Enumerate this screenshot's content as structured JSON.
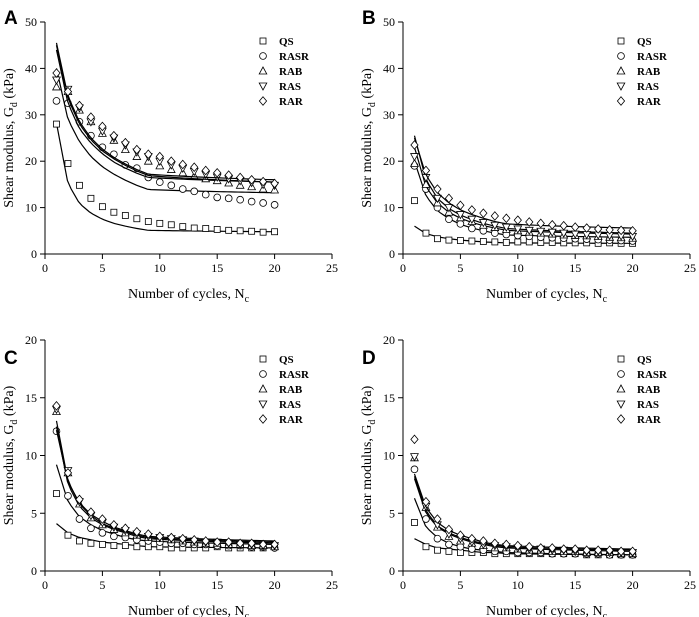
{
  "figure": {
    "description_labels": [
      "A",
      "B",
      "C",
      "D"
    ]
  },
  "chart_data": [
    {
      "panel": "A",
      "type": "scatter",
      "xlabel": "Number of cycles, N",
      "xlabel_sub": "c",
      "ylabel": "Shear modulus, G",
      "ylabel_sub": "d",
      "ylabel_unit": " (kPa)",
      "xlim": [
        0,
        25
      ],
      "ylim": [
        0,
        50
      ],
      "xticks": [
        0,
        5,
        10,
        15,
        20,
        25
      ],
      "yticks": [
        0,
        10,
        20,
        30,
        40,
        50
      ],
      "legend_position": "top-right",
      "x": [
        1,
        2,
        3,
        4,
        5,
        6,
        7,
        8,
        9,
        10,
        11,
        12,
        13,
        14,
        15,
        16,
        17,
        18,
        19,
        20
      ],
      "series": [
        {
          "name": "QS",
          "marker": "square",
          "values": [
            28,
            19.5,
            14.8,
            12,
            10.2,
            9,
            8.3,
            7.6,
            7,
            6.6,
            6.3,
            5.9,
            5.6,
            5.5,
            5.3,
            5.1,
            5,
            4.9,
            4.7,
            4.8
          ],
          "fit": [
            28.2,
            15.2,
            10.9,
            8.8,
            7.5,
            6.6,
            6,
            5.5,
            5.1,
            4.8
          ]
        },
        {
          "name": "RASR",
          "marker": "circle",
          "values": [
            33,
            32.5,
            28.5,
            25.5,
            23,
            21.5,
            19.2,
            18.5,
            16.5,
            15.5,
            14.8,
            14,
            13.5,
            12.8,
            12.2,
            12,
            11.7,
            11.3,
            11,
            10.6
          ],
          "fit": [
            40,
            29,
            24.2,
            21,
            18.8,
            17.2,
            15.9,
            14.8,
            13.9,
            13.2
          ]
        },
        {
          "name": "RAB",
          "marker": "triangle-up",
          "values": [
            36,
            35,
            31,
            28.5,
            26,
            24.5,
            22.5,
            21,
            20,
            19,
            18.2,
            17.5,
            16.8,
            16.2,
            15.8,
            15.3,
            14.8,
            14.5,
            14,
            13.8
          ],
          "fit": [
            44,
            32.5,
            27,
            23.9,
            21.6,
            19.8,
            18.5,
            17.4,
            16.5,
            15.5
          ]
        },
        {
          "name": "RAS",
          "marker": "triangle-down",
          "values": [
            37.5,
            35.5,
            31.5,
            28.5,
            26.5,
            25,
            23.5,
            22,
            21,
            20,
            19.2,
            18.5,
            17.8,
            17.2,
            16.6,
            16.2,
            15.8,
            15.4,
            15,
            14.8
          ],
          "fit": [
            45,
            33.5,
            28,
            24.6,
            22.2,
            20.5,
            19.1,
            17.9,
            16.9,
            15.5
          ]
        },
        {
          "name": "RAR",
          "marker": "diamond",
          "values": [
            39,
            35,
            32,
            29.5,
            27.5,
            25.5,
            24,
            22.5,
            21.5,
            21,
            20,
            19.3,
            18.7,
            18,
            17.5,
            17,
            16.5,
            16,
            15.6,
            15.2
          ],
          "fit": [
            45.5,
            34,
            28.5,
            25,
            22.6,
            20.8,
            19.4,
            18.2,
            17.2,
            16
          ]
        }
      ]
    },
    {
      "panel": "B",
      "type": "scatter",
      "xlabel": "Number of cycles, N",
      "xlabel_sub": "c",
      "ylabel": "Shear modulus, G",
      "ylabel_sub": "d",
      "ylabel_unit": " (kPa)",
      "xlim": [
        0,
        25
      ],
      "ylim": [
        0,
        50
      ],
      "xticks": [
        0,
        5,
        10,
        15,
        20,
        25
      ],
      "yticks": [
        0,
        10,
        20,
        30,
        40,
        50
      ],
      "legend_position": "top-right",
      "x": [
        1,
        2,
        3,
        4,
        5,
        6,
        7,
        8,
        9,
        10,
        11,
        12,
        13,
        14,
        15,
        16,
        17,
        18,
        19,
        20
      ],
      "series": [
        {
          "name": "QS",
          "marker": "square",
          "values": [
            11.5,
            4.5,
            3.3,
            3,
            2.9,
            2.8,
            2.7,
            2.6,
            2.5,
            2.6,
            2.6,
            2.5,
            2.5,
            2.4,
            2.4,
            2.4,
            2.3,
            2.4,
            2.3,
            2.3
          ],
          "fit": [
            6,
            4.4,
            3.7,
            3.3,
            3,
            2.8,
            2.6,
            2.5,
            2.4,
            2.3
          ]
        },
        {
          "name": "RASR",
          "marker": "circle",
          "values": [
            19,
            14,
            10,
            7.5,
            6.5,
            5.5,
            5,
            4.5,
            4.2,
            4,
            3.8,
            3.6,
            3.5,
            3.4,
            3.3,
            3.2,
            3.1,
            3,
            2.9,
            2.8
          ],
          "fit": [
            20,
            12.5,
            9.3,
            7.6,
            6.4,
            5.6,
            5,
            4.5,
            4.1,
            3.6
          ]
        },
        {
          "name": "RAB",
          "marker": "triangle-up",
          "values": [
            19.5,
            15,
            11,
            9,
            7.8,
            7,
            6.2,
            5.7,
            5.3,
            5,
            4.7,
            4.5,
            4.3,
            4.1,
            4,
            3.9,
            3.8,
            3.6,
            3.5,
            3.4
          ],
          "fit": [
            23,
            14.5,
            11,
            9,
            7.7,
            6.8,
            6.1,
            5.6,
            5.1,
            4.3
          ]
        },
        {
          "name": "RAS",
          "marker": "triangle-down",
          "values": [
            21,
            16.5,
            12,
            10,
            8.5,
            7.5,
            6.8,
            6.2,
            5.8,
            5.4,
            5.1,
            4.9,
            4.7,
            4.5,
            4.3,
            4.2,
            4.1,
            4,
            3.9,
            3.8
          ],
          "fit": [
            25.5,
            16,
            12,
            9.8,
            8.4,
            7.4,
            6.6,
            6,
            5.5,
            4.5
          ]
        },
        {
          "name": "RAR",
          "marker": "diamond",
          "values": [
            23.5,
            18,
            14,
            12,
            10.5,
            9.5,
            8.8,
            8.2,
            7.7,
            7.3,
            6.9,
            6.6,
            6.3,
            6.1,
            5.8,
            5.6,
            5.4,
            5.2,
            5.1,
            5
          ],
          "fit": [
            25,
            17,
            13.2,
            11,
            9.5,
            8.5,
            7.7,
            7,
            6.5,
            5.6
          ]
        }
      ]
    },
    {
      "panel": "C",
      "type": "scatter",
      "xlabel": "Number of cycles, N",
      "xlabel_sub": "c",
      "ylabel": "Shear modulus, G",
      "ylabel_sub": "d",
      "ylabel_unit": " (kPa)",
      "xlim": [
        0,
        25
      ],
      "ylim": [
        0,
        20
      ],
      "xticks": [
        0,
        5,
        10,
        15,
        20,
        25
      ],
      "yticks": [
        0,
        5,
        10,
        15,
        20
      ],
      "legend_position": "top-right",
      "x": [
        1,
        2,
        3,
        4,
        5,
        6,
        7,
        8,
        9,
        10,
        11,
        12,
        13,
        14,
        15,
        16,
        17,
        18,
        19,
        20
      ],
      "series": [
        {
          "name": "QS",
          "marker": "square",
          "values": [
            6.7,
            3.1,
            2.6,
            2.4,
            2.3,
            2.2,
            2.2,
            2.1,
            2.1,
            2.1,
            2,
            2,
            2,
            2,
            2.1,
            2,
            2,
            2,
            2,
            2.1
          ],
          "fit": [
            4.1,
            3.3,
            2.9,
            2.7,
            2.5,
            2.4,
            2.3,
            2.2,
            2.1,
            2
          ]
        },
        {
          "name": "RASR",
          "marker": "circle",
          "values": [
            12.1,
            6.5,
            4.5,
            3.7,
            3.3,
            3,
            2.9,
            2.7,
            2.6,
            2.5,
            2.4,
            2.4,
            2.3,
            2.3,
            2.2,
            2.2,
            2.2,
            2.1,
            2.1,
            2
          ],
          "fit": [
            9.2,
            6,
            4.7,
            4,
            3.5,
            3.2,
            2.9,
            2.7,
            2.6,
            2.3
          ]
        },
        {
          "name": "RAB",
          "marker": "triangle-up",
          "values": [
            13.8,
            8.5,
            5.8,
            4.6,
            4,
            3.6,
            3.3,
            3.1,
            2.9,
            2.8,
            2.7,
            2.6,
            2.5,
            2.4,
            2.4,
            2.3,
            2.3,
            2.2,
            2.2,
            2.1
          ],
          "fit": [
            12.5,
            7.5,
            5.6,
            4.6,
            4,
            3.6,
            3.3,
            3,
            2.8,
            2.4
          ]
        },
        {
          "name": "RAS",
          "marker": "triangle-down",
          "values": [
            14,
            8.7,
            6,
            4.8,
            4.2,
            3.8,
            3.5,
            3.2,
            3,
            2.9,
            2.8,
            2.7,
            2.6,
            2.5,
            2.5,
            2.4,
            2.3,
            2.3,
            2.2,
            2.2
          ],
          "fit": [
            13,
            7.8,
            5.8,
            4.8,
            4.1,
            3.7,
            3.4,
            3.1,
            2.9,
            2.5
          ]
        },
        {
          "name": "RAR",
          "marker": "diamond",
          "values": [
            14.3,
            8.5,
            6.2,
            5.1,
            4.5,
            4,
            3.7,
            3.4,
            3.2,
            3,
            2.9,
            2.8,
            2.7,
            2.6,
            2.5,
            2.5,
            2.4,
            2.4,
            2.3,
            2.3
          ],
          "fit": [
            12.2,
            7.7,
            5.9,
            4.9,
            4.3,
            3.8,
            3.5,
            3.2,
            3,
            2.6
          ]
        }
      ]
    },
    {
      "panel": "D",
      "type": "scatter",
      "xlabel": "Number of cycles, N",
      "xlabel_sub": "c",
      "ylabel": "Shear modulus, G",
      "ylabel_sub": "d",
      "ylabel_unit": " (kPa)",
      "xlim": [
        0,
        25
      ],
      "ylim": [
        0,
        20
      ],
      "xticks": [
        0,
        5,
        10,
        15,
        20,
        25
      ],
      "yticks": [
        0,
        5,
        10,
        15,
        20
      ],
      "legend_position": "top-right",
      "x": [
        1,
        2,
        3,
        4,
        5,
        6,
        7,
        8,
        9,
        10,
        11,
        12,
        13,
        14,
        15,
        16,
        17,
        18,
        19,
        20
      ],
      "series": [
        {
          "name": "QS",
          "marker": "square",
          "values": [
            4.2,
            2.1,
            1.8,
            1.7,
            1.6,
            1.6,
            1.6,
            1.5,
            1.5,
            1.5,
            1.5,
            1.5,
            1.5,
            1.5,
            1.5,
            1.4,
            1.4,
            1.4,
            1.4,
            1.4
          ],
          "fit": [
            2.8,
            2.3,
            2,
            1.9,
            1.8,
            1.7,
            1.6,
            1.6,
            1.5,
            1.4
          ]
        },
        {
          "name": "RASR",
          "marker": "circle",
          "values": [
            8.8,
            4.5,
            2.8,
            2.3,
            2.1,
            1.9,
            1.8,
            1.7,
            1.7,
            1.6,
            1.6,
            1.6,
            1.5,
            1.5,
            1.5,
            1.5,
            1.5,
            1.4,
            1.4,
            1.4
          ],
          "fit": [
            6.3,
            3.8,
            2.9,
            2.4,
            2.1,
            1.9,
            1.8,
            1.7,
            1.6,
            1.4
          ]
        },
        {
          "name": "RAB",
          "marker": "triangle-up",
          "values": [
            9.8,
            5.5,
            3.8,
            3,
            2.6,
            2.4,
            2.2,
            2,
            2,
            1.9,
            1.8,
            1.8,
            1.7,
            1.7,
            1.7,
            1.6,
            1.6,
            1.6,
            1.5,
            1.5
          ],
          "fit": [
            8,
            5,
            3.8,
            3.2,
            2.8,
            2.5,
            2.3,
            2.1,
            2,
            1.7
          ]
        },
        {
          "name": "RAS",
          "marker": "triangle-down",
          "values": [
            9.9,
            5.6,
            4,
            3.2,
            2.8,
            2.5,
            2.3,
            2.2,
            2.1,
            2,
            1.9,
            1.9,
            1.8,
            1.8,
            1.7,
            1.7,
            1.7,
            1.6,
            1.6,
            1.6
          ],
          "fit": [
            8.2,
            5.2,
            3.9,
            3.3,
            2.9,
            2.6,
            2.4,
            2.2,
            2.1,
            1.8
          ]
        },
        {
          "name": "RAR",
          "marker": "diamond",
          "values": [
            11.4,
            6,
            4.5,
            3.6,
            3.1,
            2.8,
            2.6,
            2.4,
            2.3,
            2.2,
            2.1,
            2,
            2,
            1.9,
            1.9,
            1.8,
            1.8,
            1.8,
            1.7,
            1.7
          ],
          "fit": [
            8.4,
            5.5,
            4.2,
            3.5,
            3.1,
            2.8,
            2.5,
            2.3,
            2.2,
            1.9
          ]
        }
      ]
    }
  ]
}
